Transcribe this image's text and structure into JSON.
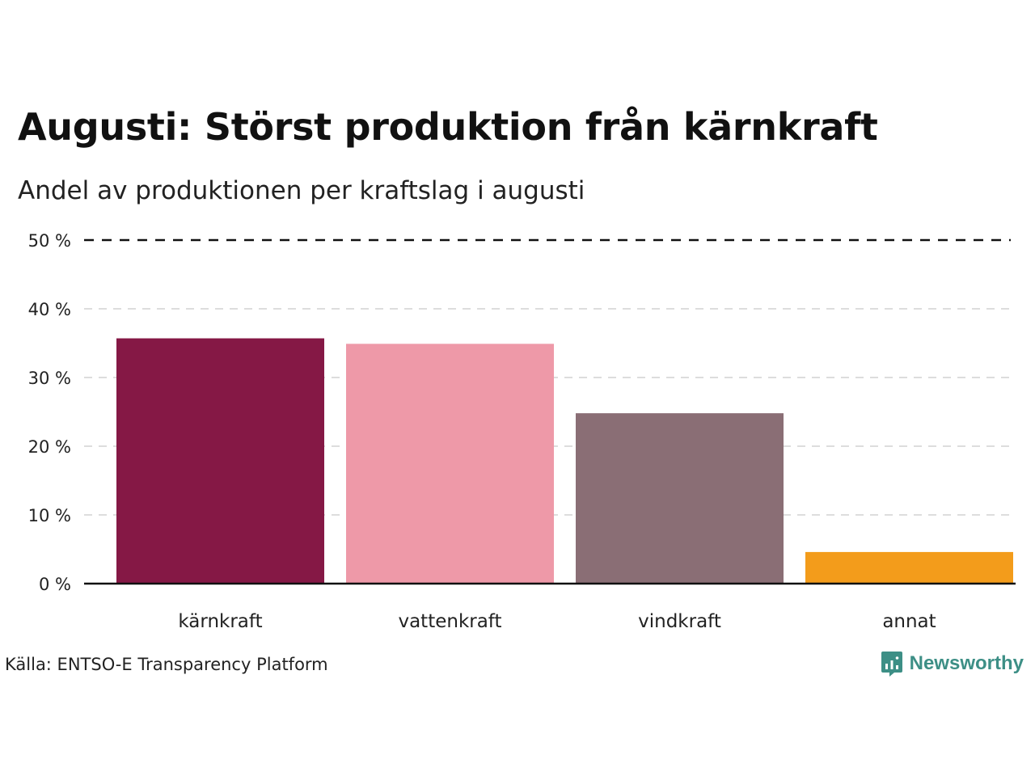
{
  "header": {
    "title": "Augusti: Störst produktion från kärnkraft",
    "subtitle": "Andel av produktionen per kraftslag i augusti"
  },
  "footer": {
    "source": "Källa: ENTSO-E Transparency Platform",
    "brand": "Newsworthy",
    "brand_icon": "newsworthy-logo-icon"
  },
  "chart_data": {
    "type": "bar",
    "categories": [
      "kärnkraft",
      "vattenkraft",
      "vindkraft",
      "annat"
    ],
    "values": [
      35.7,
      34.9,
      24.8,
      4.6
    ],
    "colors": [
      "#851845",
      "#ee99a8",
      "#8a6e75",
      "#f39c1b"
    ],
    "title": "Augusti: Störst produktion från kärnkraft",
    "subtitle": "Andel av produktionen per kraftslag i augusti",
    "xlabel": "",
    "ylabel": "",
    "ylim": [
      0,
      50
    ],
    "yticks": [
      0,
      10,
      20,
      30,
      40,
      50
    ],
    "ytick_labels": [
      "0 %",
      "10 %",
      "20 %",
      "30 %",
      "40 %",
      "50 %"
    ],
    "grid": true,
    "legend": "none"
  }
}
